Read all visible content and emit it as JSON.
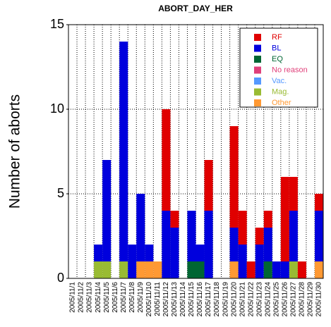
{
  "chart_data": {
    "type": "stacked_bar",
    "title": "ABORT_DAY_HER",
    "y_label": "Number of aborts",
    "categories": [
      "2005/11/1",
      "2005/11/2",
      "2005/11/3",
      "2005/11/4",
      "2005/11/5",
      "2005/11/6",
      "2005/11/7",
      "2005/11/8",
      "2005/11/9",
      "2005/11/10",
      "2005/11/11",
      "2005/11/12",
      "2005/11/13",
      "2005/11/14",
      "2005/11/15",
      "2005/11/16",
      "2005/11/17",
      "2005/11/18",
      "2005/11/19",
      "2005/11/20",
      "2005/11/21",
      "2005/11/22",
      "2005/11/23",
      "2005/11/24",
      "2005/11/25",
      "2005/11/26",
      "2005/11/27",
      "2005/11/28",
      "2005/11/29",
      "2005/11/30"
    ],
    "series": [
      {
        "name": "RF",
        "color": "#e00000",
        "values": [
          0,
          0,
          0,
          0,
          0,
          0,
          0,
          0,
          0,
          0,
          0,
          6,
          1,
          0,
          0,
          0,
          3,
          0,
          0,
          6,
          2,
          1,
          1,
          1,
          0,
          5,
          2,
          1,
          0,
          1
        ]
      },
      {
        "name": "BL",
        "color": "#0000dd",
        "values": [
          0,
          0,
          0,
          1,
          6,
          0,
          13,
          2,
          4,
          1,
          0,
          4,
          3,
          0,
          3,
          1,
          4,
          0,
          0,
          2,
          2,
          0,
          2,
          2,
          1,
          1,
          3,
          0,
          0,
          3
        ]
      },
      {
        "name": "EQ",
        "color": "#006633",
        "values": [
          0,
          0,
          0,
          0,
          0,
          0,
          0,
          0,
          0,
          0,
          0,
          0,
          0,
          0,
          1,
          1,
          0,
          0,
          0,
          0,
          0,
          0,
          0,
          1,
          0,
          0,
          0,
          0,
          0,
          0
        ]
      },
      {
        "name": "No reason",
        "color": "#e0407a",
        "values": [
          0,
          0,
          0,
          0,
          0,
          0,
          0,
          0,
          0,
          0,
          0,
          0,
          0,
          0,
          0,
          0,
          0,
          0,
          0,
          0,
          0,
          0,
          0,
          0,
          0,
          0,
          0,
          0,
          0,
          0
        ]
      },
      {
        "name": "Vac.",
        "color": "#5599ff",
        "values": [
          0,
          0,
          0,
          0,
          0,
          0,
          0,
          0,
          0,
          0,
          0,
          0,
          0,
          0,
          0,
          0,
          0,
          0,
          0,
          0,
          0,
          0,
          0,
          0,
          0,
          0,
          0,
          0,
          0,
          0
        ]
      },
      {
        "name": "Mag.",
        "color": "#99bb33",
        "values": [
          0,
          0,
          0,
          1,
          1,
          0,
          1,
          0,
          0,
          0,
          0,
          0,
          0,
          0,
          0,
          0,
          0,
          0,
          0,
          0,
          0,
          0,
          0,
          0,
          0,
          0,
          1,
          0,
          0,
          0
        ]
      },
      {
        "name": "Other",
        "color": "#ff9933",
        "values": [
          0,
          0,
          0,
          0,
          0,
          0,
          0,
          0,
          1,
          1,
          1,
          0,
          0,
          0,
          0,
          0,
          0,
          0,
          0,
          1,
          0,
          0,
          0,
          0,
          0,
          0,
          0,
          0,
          0,
          1
        ]
      }
    ],
    "ylim": [
      0,
      15
    ],
    "yticks": [
      0,
      5,
      10,
      15
    ],
    "grid": true,
    "legend": "upper right"
  }
}
